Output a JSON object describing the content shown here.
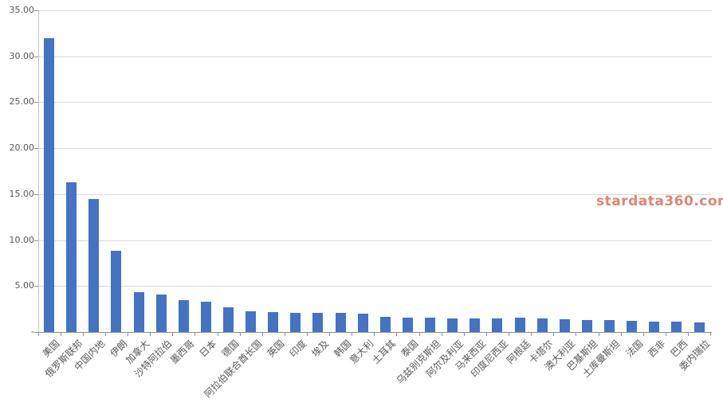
{
  "watermark": {
    "text": "stardata360.com",
    "color": "#dd8672"
  },
  "chart_data": {
    "type": "bar",
    "title": "",
    "xlabel": "",
    "ylabel": "",
    "categories": [
      "美国",
      "俄罗斯联邦",
      "中国内地",
      "伊朗",
      "加拿大",
      "沙特阿拉伯",
      "墨西哥",
      "日本",
      "德国",
      "阿拉伯联合酋长国",
      "英国",
      "印度",
      "埃及",
      "韩国",
      "意大利",
      "土耳其",
      "泰国",
      "乌兹别克斯坦",
      "阿尔及利亚",
      "马来西亚",
      "印度尼西亚",
      "阿根廷",
      "卡塔尔",
      "澳大利亚",
      "巴基斯坦",
      "土库曼斯坦",
      "法国",
      "西非",
      "巴西",
      "委内瑞拉"
    ],
    "values": [
      32.0,
      16.3,
      14.5,
      8.8,
      4.35,
      4.1,
      3.45,
      3.3,
      2.65,
      2.3,
      2.2,
      2.1,
      2.05,
      2.1,
      2.0,
      1.65,
      1.6,
      1.55,
      1.5,
      1.5,
      1.5,
      1.55,
      1.5,
      1.4,
      1.3,
      1.3,
      1.2,
      1.1,
      1.1,
      1.05
    ],
    "ylim": [
      0,
      35
    ],
    "ytick_interval": 5,
    "ytick_labels": [
      "-",
      "5.00",
      "10.00",
      "15.00",
      "20.00",
      "25.00",
      "30.00",
      "35.00"
    ],
    "grid": true,
    "legend": "none",
    "bar_color": "#4472c4",
    "gridline_color": "#d9d9d9",
    "axis_color": "#8e8e8e",
    "label_color": "#595959"
  }
}
